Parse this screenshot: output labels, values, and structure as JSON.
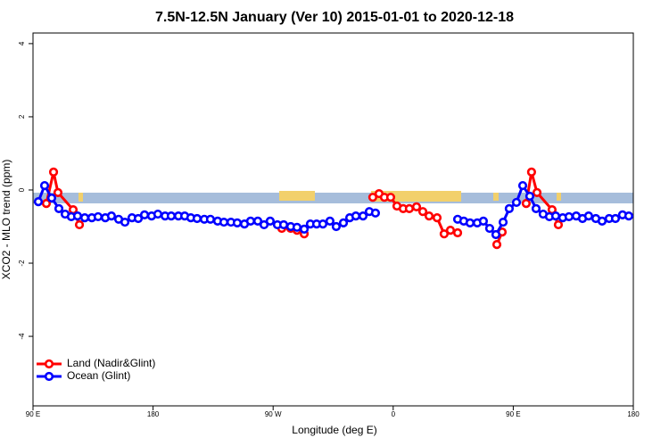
{
  "chart_data": {
    "type": "line",
    "title": "7.5N-12.5N January (Ver 10)   2015-01-01 to 2020-12-18",
    "xlabel": "Longitude (deg E)",
    "ylabel": "XCO2 - MLO trend (ppm)",
    "xlim": [
      90,
      540
    ],
    "xticks": [
      {
        "value": 90,
        "label": "90 E"
      },
      180,
      {
        "value": 270,
        "label": "90 W"
      },
      {
        "value": 360,
        "label": "0"
      },
      {
        "value": 450,
        "label": "90 E"
      },
      180
    ],
    "ylim": [
      -5.9,
      4.29
    ],
    "yticks": [
      -4,
      -2,
      0,
      2,
      4
    ],
    "legend": "bottomleft",
    "series": [
      {
        "name": "Land (Nadir&Glint)",
        "color": "#ff0000",
        "x": [
          100.0,
          105.4,
          108.7,
          120.1,
          124.8,
          276.5,
          283.2,
          287.9,
          293.3,
          344.7,
          349.4,
          353.4,
          358.1,
          362.8,
          367.5,
          372.1,
          377.5,
          382.2,
          386.9,
          392.9,
          398.2,
          402.9,
          408.3,
          437.7,
          441.7,
          459.7,
          463.7,
          467.8,
          479.1,
          483.8
        ],
        "values": [
          -0.37,
          0.49,
          -0.07,
          -0.54,
          -0.95,
          -1.05,
          -1.05,
          -1.1,
          -1.2,
          -0.2,
          -0.1,
          -0.2,
          -0.2,
          -0.44,
          -0.51,
          -0.51,
          -0.46,
          -0.59,
          -0.71,
          -0.76,
          -1.2,
          -1.1,
          -1.17,
          -1.49,
          -1.15,
          -0.37,
          0.49,
          -0.07,
          -0.54,
          -0.95
        ]
      },
      {
        "name": "Ocean (Glint)",
        "color": "#0000ff",
        "x": [
          94.0,
          98.7,
          104.0,
          109.4,
          114.1,
          118.7,
          123.4,
          128.8,
          134.1,
          138.8,
          144.2,
          148.8,
          154.2,
          158.9,
          164.2,
          168.9,
          173.6,
          178.9,
          183.6,
          189.0,
          193.6,
          199.0,
          203.7,
          208.3,
          213.0,
          218.4,
          223.0,
          228.4,
          233.1,
          238.4,
          243.1,
          248.5,
          253.1,
          258.5,
          263.2,
          267.8,
          273.2,
          277.9,
          283.2,
          287.9,
          293.3,
          297.9,
          302.6,
          307.3,
          312.6,
          317.3,
          322.7,
          327.4,
          332.0,
          337.4,
          342.1,
          346.7,
          408.3,
          412.9,
          417.6,
          423.0,
          427.6,
          432.3,
          437.0,
          442.4,
          447.0,
          452.4,
          457.1,
          462.4,
          467.1,
          472.4,
          477.1,
          481.8,
          487.1,
          491.8,
          497.2,
          501.9,
          506.5,
          511.9,
          516.6,
          521.9,
          526.6,
          531.9,
          536.6
        ],
        "values": [
          -0.32,
          0.12,
          -0.22,
          -0.51,
          -0.66,
          -0.73,
          -0.71,
          -0.76,
          -0.76,
          -0.73,
          -0.76,
          -0.71,
          -0.8,
          -0.88,
          -0.76,
          -0.78,
          -0.68,
          -0.71,
          -0.66,
          -0.71,
          -0.71,
          -0.71,
          -0.71,
          -0.76,
          -0.78,
          -0.8,
          -0.8,
          -0.85,
          -0.88,
          -0.88,
          -0.9,
          -0.93,
          -0.85,
          -0.85,
          -0.95,
          -0.85,
          -0.95,
          -0.95,
          -1.0,
          -1.02,
          -1.07,
          -0.93,
          -0.93,
          -0.93,
          -0.85,
          -1.0,
          -0.9,
          -0.76,
          -0.71,
          -0.71,
          -0.59,
          -0.63,
          -0.8,
          -0.85,
          -0.9,
          -0.9,
          -0.85,
          -1.05,
          -1.22,
          -0.88,
          -0.51,
          -0.34,
          0.12,
          -0.17,
          -0.51,
          -0.66,
          -0.73,
          -0.71,
          -0.76,
          -0.73,
          -0.71,
          -0.78,
          -0.71,
          -0.78,
          -0.85,
          -0.78,
          -0.78,
          -0.68,
          -0.71
        ]
      }
    ]
  }
}
